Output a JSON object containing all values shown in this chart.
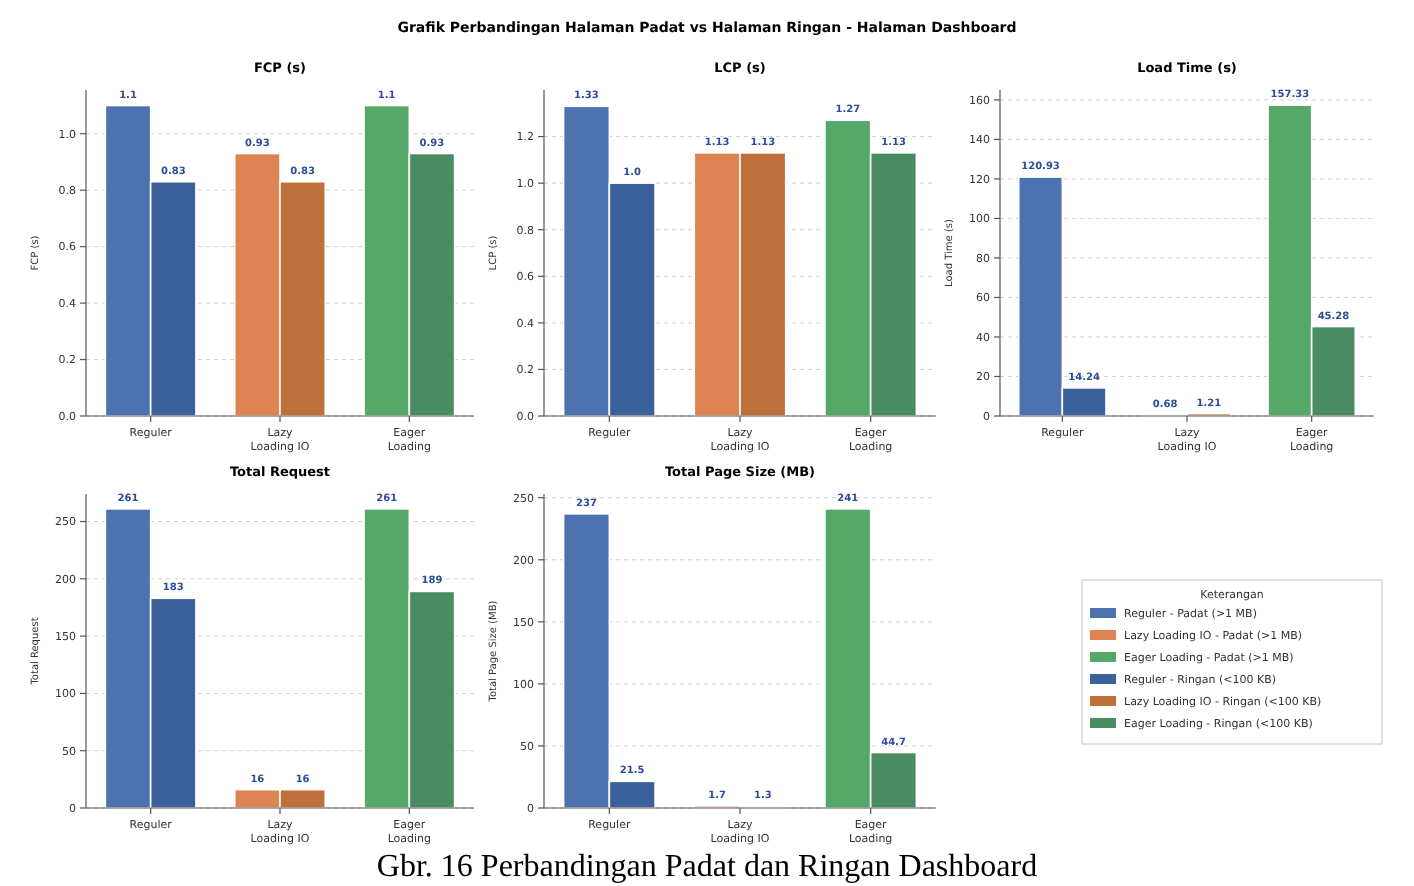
{
  "chart_data": [
    {
      "type": "bar",
      "title": "FCP (s)",
      "ylabel": "FCP (s)",
      "categories": [
        "Reguler",
        "Lazy\nLoading IO",
        "Eager\nLoading"
      ],
      "ylim": [
        0,
        1.155
      ],
      "yticks": [
        {
          "value": 0,
          "label": "0.0"
        },
        {
          "value": 0.2,
          "label": "0.2"
        },
        {
          "value": 0.4,
          "label": "0.4"
        },
        {
          "value": 0.6,
          "label": "0.6"
        },
        {
          "value": 0.8,
          "label": "0.8"
        },
        {
          "value": 1,
          "label": "1.0"
        }
      ],
      "grid": "y",
      "annotations": [
        "Grafik Perbandingan Halaman Padat vs Halaman Ringan - Halaman Dashboard",
        "Gbr. 16 Perbandingan Padat dan Ringan Dashboard"
      ],
      "series": [
        {
          "color": "#4c72b0",
          "values": [
            1.1,
            null,
            null
          ],
          "value_labels": [
            "1.1",
            null,
            null
          ]
        },
        {
          "color": "#dd8452",
          "values": [
            null,
            0.93,
            null
          ],
          "value_labels": [
            null,
            "0.93",
            null
          ]
        },
        {
          "color": "#55a868",
          "values": [
            null,
            null,
            1.1
          ],
          "value_labels": [
            null,
            null,
            "1.1"
          ]
        },
        {
          "color": "#3a6199",
          "values": [
            0.83,
            null,
            null
          ],
          "value_labels": [
            "0.83",
            null,
            null
          ]
        },
        {
          "color": "#c0703a",
          "values": [
            null,
            0.83,
            null
          ],
          "value_labels": [
            null,
            "0.83",
            null
          ]
        },
        {
          "color": "#4a8c62",
          "values": [
            null,
            null,
            0.93
          ],
          "value_labels": [
            null,
            null,
            "0.93"
          ]
        }
      ]
    },
    {
      "type": "bar",
      "title": "LCP (s)",
      "ylabel": "LCP (s)",
      "categories": [
        "Reguler",
        "Lazy\nLoading IO",
        "Eager\nLoading"
      ],
      "ylim": [
        0,
        1.4
      ],
      "yticks": [
        {
          "value": 0,
          "label": "0.0"
        },
        {
          "value": 0.2,
          "label": "0.2"
        },
        {
          "value": 0.4,
          "label": "0.4"
        },
        {
          "value": 0.6,
          "label": "0.6"
        },
        {
          "value": 0.8,
          "label": "0.8"
        },
        {
          "value": 1,
          "label": "1.0"
        },
        {
          "value": 1.2,
          "label": "1.2"
        }
      ],
      "grid": "y",
      "series": [
        {
          "color": "#4c72b0",
          "values": [
            1.33,
            null,
            null
          ],
          "value_labels": [
            "1.33",
            null,
            null
          ]
        },
        {
          "color": "#dd8452",
          "values": [
            null,
            1.13,
            null
          ],
          "value_labels": [
            null,
            "1.13",
            null
          ]
        },
        {
          "color": "#55a868",
          "values": [
            null,
            null,
            1.27
          ],
          "value_labels": [
            null,
            null,
            "1.27"
          ]
        },
        {
          "color": "#3a6199",
          "values": [
            1.0,
            null,
            null
          ],
          "value_labels": [
            "1.0",
            null,
            null
          ]
        },
        {
          "color": "#c0703a",
          "values": [
            null,
            1.13,
            null
          ],
          "value_labels": [
            null,
            "1.13",
            null
          ]
        },
        {
          "color": "#4a8c62",
          "values": [
            null,
            null,
            1.13
          ],
          "value_labels": [
            null,
            null,
            "1.13"
          ]
        }
      ]
    },
    {
      "type": "bar",
      "title": "Load Time (s)",
      "ylabel": "Load Time (s)",
      "categories": [
        "Reguler",
        "Lazy\nLoading IO",
        "Eager\nLoading"
      ],
      "ylim": [
        0,
        165
      ],
      "yticks": [
        0,
        20,
        40,
        60,
        80,
        100,
        120,
        140,
        160
      ],
      "grid": "y",
      "series": [
        {
          "color": "#4c72b0",
          "values": [
            120.93,
            null,
            null
          ],
          "value_labels": [
            "120.93",
            null,
            null
          ]
        },
        {
          "color": "#dd8452",
          "values": [
            null,
            0.68,
            null
          ],
          "value_labels": [
            null,
            "0.68",
            null
          ]
        },
        {
          "color": "#55a868",
          "values": [
            null,
            null,
            157.33
          ],
          "value_labels": [
            null,
            null,
            "157.33"
          ]
        },
        {
          "color": "#3a6199",
          "values": [
            14.24,
            null,
            null
          ],
          "value_labels": [
            "14.24",
            null,
            null
          ]
        },
        {
          "color": "#c0703a",
          "values": [
            null,
            1.21,
            null
          ],
          "value_labels": [
            null,
            "1.21",
            null
          ]
        },
        {
          "color": "#4a8c62",
          "values": [
            null,
            null,
            45.28
          ],
          "value_labels": [
            null,
            null,
            "45.28"
          ]
        }
      ]
    },
    {
      "type": "bar",
      "title": "Total Request",
      "ylabel": "Total Request",
      "categories": [
        "Reguler",
        "Lazy\nLoading IO",
        "Eager\nLoading"
      ],
      "ylim": [
        0,
        274
      ],
      "yticks": [
        0,
        50,
        100,
        150,
        200,
        250
      ],
      "grid": "y",
      "series": [
        {
          "color": "#4c72b0",
          "values": [
            261,
            null,
            null
          ],
          "value_labels": [
            "261",
            null,
            null
          ]
        },
        {
          "color": "#dd8452",
          "values": [
            null,
            16,
            null
          ],
          "value_labels": [
            null,
            "16",
            null
          ]
        },
        {
          "color": "#55a868",
          "values": [
            null,
            null,
            261
          ],
          "value_labels": [
            null,
            null,
            "261"
          ]
        },
        {
          "color": "#3a6199",
          "values": [
            183,
            null,
            null
          ],
          "value_labels": [
            "183",
            null,
            null
          ]
        },
        {
          "color": "#c0703a",
          "values": [
            null,
            16,
            null
          ],
          "value_labels": [
            null,
            "16",
            null
          ]
        },
        {
          "color": "#4a8c62",
          "values": [
            null,
            null,
            189
          ],
          "value_labels": [
            null,
            null,
            "189"
          ]
        }
      ]
    },
    {
      "type": "bar",
      "title": "Total Page Size (MB)",
      "ylabel": "Total Page Size (MB)",
      "categories": [
        "Reguler",
        "Lazy\nLoading IO",
        "Eager\nLoading"
      ],
      "ylim": [
        0,
        253
      ],
      "yticks": [
        0,
        50,
        100,
        150,
        200,
        250
      ],
      "grid": "y",
      "legend": "right",
      "legend_title": "Keterangan",
      "series": [
        {
          "name": "Reguler - Padat (>1 MB)",
          "color": "#4c72b0",
          "values": [
            237,
            null,
            null
          ],
          "value_labels": [
            "237",
            null,
            null
          ]
        },
        {
          "name": "Lazy Loading IO - Padat (>1 MB)",
          "color": "#dd8452",
          "values": [
            null,
            1.7,
            null
          ],
          "value_labels": [
            null,
            "1.7",
            null
          ]
        },
        {
          "name": "Eager Loading - Padat (>1 MB)",
          "color": "#55a868",
          "values": [
            null,
            null,
            241
          ],
          "value_labels": [
            null,
            null,
            "241"
          ]
        },
        {
          "name": "Reguler - Ringan (<100 KB)",
          "color": "#3a6199",
          "values": [
            21.5,
            null,
            null
          ],
          "value_labels": [
            "21.5",
            null,
            null
          ]
        },
        {
          "name": "Lazy Loading IO - Ringan (<100 KB)",
          "color": "#c0703a",
          "values": [
            null,
            1.3,
            null
          ],
          "value_labels": [
            null,
            "1.3",
            null
          ]
        },
        {
          "name": "Eager Loading - Ringan (<100 KB)",
          "color": "#4a8c62",
          "values": [
            null,
            null,
            44.7
          ],
          "value_labels": [
            null,
            null,
            "44.7"
          ]
        }
      ]
    }
  ]
}
